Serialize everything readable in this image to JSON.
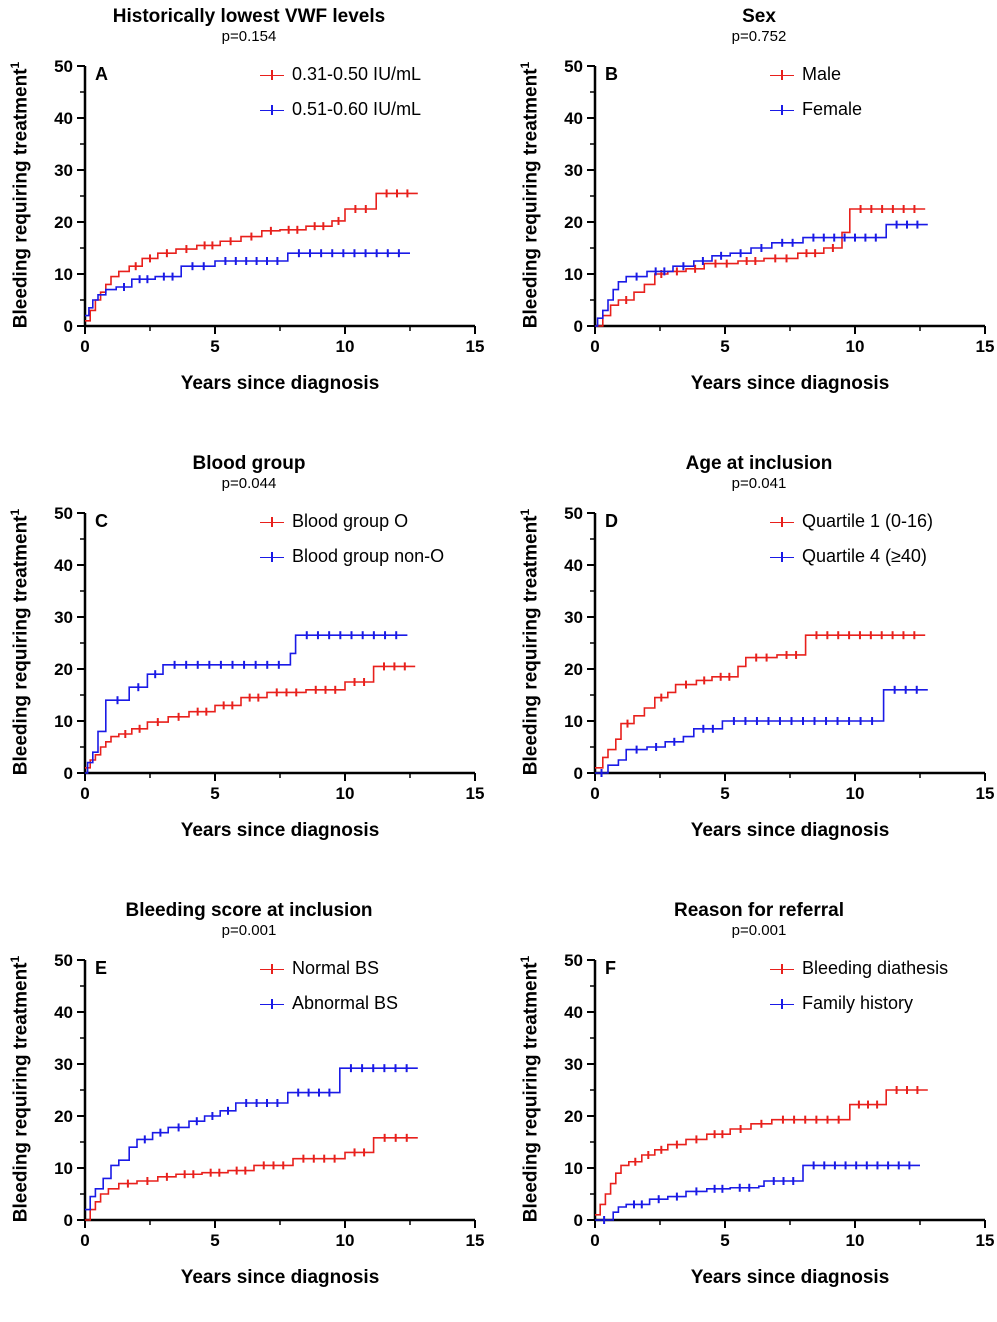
{
  "colors": {
    "series1": "#e8201c",
    "series2": "#1a1ae6"
  },
  "panels_text": {
    "A": {
      "title": "Historically lowest VWF levels",
      "pvalue": "p=0.154",
      "label": "A",
      "s1": "0.31-0.50 IU/mL",
      "s2": "0.51-0.60 IU/mL"
    },
    "B": {
      "title": "Sex",
      "pvalue": "p=0.752",
      "label": "B",
      "s1": "Male",
      "s2": "Female"
    },
    "C": {
      "title": "Blood group",
      "pvalue": "p=0.044",
      "label": "C",
      "s1": "Blood group O",
      "s2": "Blood group non-O"
    },
    "D": {
      "title": "Age at inclusion",
      "pvalue": "p=0.041",
      "label": "D",
      "s1": "Quartile 1 (0-16)",
      "s2": "Quartile 4 (≥40)"
    },
    "E": {
      "title": "Bleeding score at inclusion",
      "pvalue": "p=0.001",
      "label": "E",
      "s1": "Normal BS",
      "s2": "Abnormal BS"
    },
    "F": {
      "title": "Reason for referral",
      "pvalue": "p=0.001",
      "label": "F",
      "s1": "Bleeding diathesis",
      "s2": "Family history"
    }
  },
  "axis_text": {
    "xlabel": "Years since diagnosis",
    "ylabel": "Bleeding requiring treatment",
    "ylabel_sup": "1"
  },
  "chart_data": [
    {
      "type": "line",
      "step": true,
      "panel": "A",
      "xlim": [
        0,
        15
      ],
      "ylim": [
        0,
        50
      ],
      "xticks": [
        0,
        5,
        10,
        15
      ],
      "yticks": [
        0,
        10,
        20,
        30,
        40,
        50
      ],
      "series": [
        {
          "name": "0.31-0.50 IU/mL",
          "color": "#e8201c",
          "x": [
            0,
            0.2,
            0.4,
            0.6,
            0.8,
            1.0,
            1.3,
            1.7,
            2.2,
            2.8,
            3.5,
            4.3,
            5.2,
            6.0,
            6.8,
            7.5,
            8.5,
            9.5,
            10.0,
            11.2,
            12.8
          ],
          "y": [
            1,
            3,
            5,
            6.5,
            8,
            9.5,
            10.5,
            11.5,
            13,
            14,
            14.8,
            15.5,
            16.3,
            17.2,
            18.3,
            18.5,
            19.2,
            20.2,
            22.5,
            25.5,
            25.5
          ]
        },
        {
          "name": "0.51-0.60 IU/mL",
          "color": "#1a1ae6",
          "x": [
            0,
            0.15,
            0.3,
            0.5,
            0.8,
            1.2,
            1.8,
            2.7,
            3.7,
            5.0,
            7.8,
            12.5
          ],
          "y": [
            2,
            3.5,
            5,
            6,
            7,
            7.5,
            9,
            9.5,
            11.5,
            12.5,
            14,
            14
          ]
        }
      ]
    },
    {
      "type": "line",
      "step": true,
      "panel": "B",
      "xlim": [
        0,
        15
      ],
      "ylim": [
        0,
        50
      ],
      "xticks": [
        0,
        5,
        10,
        15
      ],
      "yticks": [
        0,
        10,
        20,
        30,
        40,
        50
      ],
      "series": [
        {
          "name": "Male",
          "color": "#e8201c",
          "x": [
            0,
            0.3,
            0.6,
            0.9,
            1.5,
            1.9,
            2.3,
            2.8,
            3.5,
            4.2,
            5.5,
            6.5,
            7.8,
            8.8,
            9.5,
            9.8,
            12.7
          ],
          "y": [
            0,
            2,
            4,
            5,
            6.5,
            8,
            10,
            10.5,
            11,
            12,
            12.5,
            13,
            14,
            15,
            18,
            22.5,
            22.5
          ]
        },
        {
          "name": "Female",
          "color": "#1a1ae6",
          "x": [
            0,
            0.1,
            0.3,
            0.5,
            0.7,
            0.9,
            1.2,
            2.0,
            3.0,
            3.8,
            4.5,
            5.2,
            6.0,
            6.8,
            8.0,
            11.2,
            12.8
          ],
          "y": [
            0,
            1.5,
            3,
            5,
            7,
            8.5,
            9.5,
            10.5,
            11.5,
            12.5,
            13.5,
            14,
            15,
            16,
            17,
            19.5,
            19.5
          ]
        }
      ]
    },
    {
      "type": "line",
      "step": true,
      "panel": "C",
      "xlim": [
        0,
        15
      ],
      "ylim": [
        0,
        50
      ],
      "xticks": [
        0,
        5,
        10,
        15
      ],
      "yticks": [
        0,
        10,
        20,
        30,
        40,
        50
      ],
      "series": [
        {
          "name": "Blood group O",
          "color": "#e8201c",
          "x": [
            0,
            0.2,
            0.4,
            0.6,
            0.8,
            1.0,
            1.3,
            1.8,
            2.4,
            3.2,
            4.0,
            5.0,
            6.0,
            7.0,
            8.5,
            10.0,
            11.1,
            12.7
          ],
          "y": [
            1,
            2.5,
            3.5,
            5,
            6,
            7,
            7.5,
            8.5,
            9.8,
            10.8,
            11.8,
            13,
            14.5,
            15.5,
            16,
            17.5,
            20.5,
            20.5
          ]
        },
        {
          "name": "Blood group non-O",
          "color": "#1a1ae6",
          "x": [
            0,
            0.1,
            0.3,
            0.5,
            0.8,
            1.7,
            2.4,
            3.0,
            7.9,
            8.1,
            12.4
          ],
          "y": [
            0,
            2,
            4,
            8,
            14,
            16.5,
            19,
            20.8,
            23,
            26.5,
            26.5
          ]
        }
      ]
    },
    {
      "type": "line",
      "step": true,
      "panel": "D",
      "xlim": [
        0,
        15
      ],
      "ylim": [
        0,
        50
      ],
      "xticks": [
        0,
        5,
        10,
        15
      ],
      "yticks": [
        0,
        10,
        20,
        30,
        40,
        50
      ],
      "series": [
        {
          "name": "Quartile 1 (0-16)",
          "color": "#e8201c",
          "x": [
            0,
            0.3,
            0.5,
            0.8,
            1.0,
            1.5,
            1.9,
            2.3,
            2.8,
            3.1,
            3.9,
            4.5,
            5.5,
            5.8,
            7.0,
            8.1,
            12.7
          ],
          "y": [
            1,
            3,
            4.5,
            6.5,
            9.5,
            11,
            12.5,
            14.5,
            15.5,
            17,
            17.8,
            18.5,
            20.5,
            22.2,
            22.7,
            26.5,
            26.5
          ]
        },
        {
          "name": "Quartile 4 (≥40)",
          "color": "#1a1ae6",
          "x": [
            0,
            0.5,
            0.9,
            1.2,
            2.0,
            2.7,
            3.4,
            3.8,
            4.9,
            11.1,
            12.8
          ],
          "y": [
            0,
            1.5,
            2.5,
            4.5,
            5,
            6,
            7,
            8.5,
            10,
            16,
            16
          ]
        }
      ]
    },
    {
      "type": "line",
      "step": true,
      "panel": "E",
      "xlim": [
        0,
        15
      ],
      "ylim": [
        0,
        50
      ],
      "xticks": [
        0,
        5,
        10,
        15
      ],
      "yticks": [
        0,
        10,
        20,
        30,
        40,
        50
      ],
      "series": [
        {
          "name": "Normal BS",
          "color": "#e8201c",
          "x": [
            0,
            0.2,
            0.4,
            0.6,
            0.9,
            1.3,
            2.0,
            2.8,
            3.5,
            4.5,
            5.5,
            6.5,
            8.0,
            10.0,
            11.1,
            12.8
          ],
          "y": [
            0,
            2,
            3.5,
            5,
            6,
            7,
            7.5,
            8.3,
            8.8,
            9.1,
            9.5,
            10.5,
            11.8,
            13,
            15.8,
            15.8
          ]
        },
        {
          "name": "Abnormal BS",
          "color": "#1a1ae6",
          "x": [
            0,
            0.2,
            0.4,
            0.7,
            1.0,
            1.3,
            1.7,
            2.0,
            2.6,
            3.2,
            4.0,
            4.6,
            5.2,
            5.8,
            7.8,
            9.8,
            12.8
          ],
          "y": [
            2,
            4.5,
            6,
            8,
            10.5,
            11.5,
            14,
            15.5,
            16.8,
            17.8,
            19,
            20,
            21,
            22.5,
            24.5,
            29.2,
            29.2
          ]
        }
      ]
    },
    {
      "type": "line",
      "step": true,
      "panel": "F",
      "xlim": [
        0,
        15
      ],
      "ylim": [
        0,
        50
      ],
      "xticks": [
        0,
        5,
        10,
        15
      ],
      "yticks": [
        0,
        10,
        20,
        30,
        40,
        50
      ],
      "series": [
        {
          "name": "Bleeding diathesis",
          "color": "#e8201c",
          "x": [
            0,
            0.2,
            0.4,
            0.6,
            0.8,
            1.0,
            1.3,
            1.8,
            2.3,
            2.8,
            3.5,
            4.3,
            5.2,
            6.0,
            6.8,
            9.8,
            11.2,
            12.8
          ],
          "y": [
            1,
            3,
            5,
            7,
            9,
            10.5,
            11.2,
            12.5,
            13.5,
            14.5,
            15.5,
            16.5,
            17.5,
            18.5,
            19.3,
            22.2,
            25,
            25
          ]
        },
        {
          "name": "Family history",
          "color": "#1a1ae6",
          "x": [
            0,
            0.7,
            0.9,
            1.2,
            2.1,
            2.8,
            3.5,
            4.3,
            5.2,
            6.3,
            6.5,
            8.0,
            12.5
          ],
          "y": [
            0,
            1.5,
            2.5,
            3,
            4,
            4.5,
            5.5,
            6,
            6.2,
            6.5,
            7.5,
            10.5,
            10.5
          ]
        }
      ]
    }
  ]
}
